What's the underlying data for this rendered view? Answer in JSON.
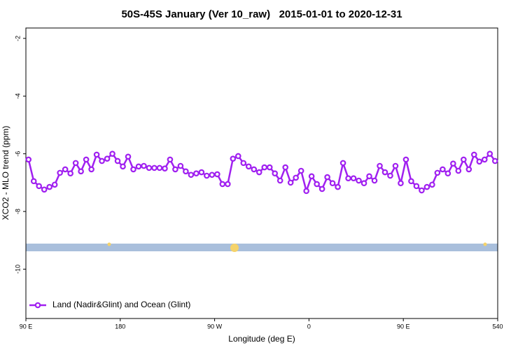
{
  "chart_data": {
    "type": "line",
    "title": "50S-45S January (Ver 10_raw)   2015-01-01 to 2020-12-31",
    "x_label": "Longitude (deg E)",
    "y_label": "XCO2 - MLO trend (ppm)",
    "x": [
      92.5,
      97.5,
      102.5,
      107.5,
      112.5,
      117.5,
      122.5,
      127.5,
      132.5,
      137.5,
      142.5,
      147.5,
      152.5,
      157.5,
      162.5,
      167.5,
      172.5,
      177.5,
      182.5,
      187.5,
      192.5,
      197.5,
      202.5,
      207.5,
      212.5,
      217.5,
      222.5,
      227.5,
      232.5,
      237.5,
      242.5,
      247.5,
      252.5,
      257.5,
      262.5,
      267.5,
      272.5,
      277.5,
      282.5,
      287.5,
      292.5,
      297.5,
      302.5,
      307.5,
      312.5,
      317.5,
      322.5,
      327.5,
      332.5,
      337.5,
      342.5,
      347.5,
      352.5,
      357.5,
      362.5,
      367.5,
      372.5,
      377.5,
      382.5,
      387.5,
      392.5,
      397.5,
      402.5,
      407.5,
      412.5,
      417.5,
      422.5,
      427.5,
      432.5,
      437.5,
      442.5,
      447.5,
      452.5,
      457.5,
      462.5,
      467.5,
      472.5,
      477.5,
      482.5,
      487.5,
      492.5,
      497.5,
      502.5,
      507.5,
      512.5,
      517.5,
      522.5,
      527.5,
      532.5,
      537.5
    ],
    "series": [
      {
        "name": "Land (Nadir&Glint) and Ocean (Glint)",
        "color": "#a020f0",
        "values": [
          -6.2,
          -6.95,
          -7.12,
          -7.24,
          -7.15,
          -7.07,
          -6.66,
          -6.54,
          -6.68,
          -6.32,
          -6.61,
          -6.2,
          -6.54,
          -6.03,
          -6.25,
          -6.17,
          -6.0,
          -6.25,
          -6.44,
          -6.1,
          -6.54,
          -6.44,
          -6.42,
          -6.49,
          -6.49,
          -6.49,
          -6.51,
          -6.2,
          -6.54,
          -6.42,
          -6.61,
          -6.73,
          -6.68,
          -6.64,
          -6.76,
          -6.73,
          -6.71,
          -7.05,
          -7.05,
          -6.17,
          -6.08,
          -6.32,
          -6.44,
          -6.54,
          -6.64,
          -6.47,
          -6.47,
          -6.68,
          -6.93,
          -6.47,
          -7.0,
          -6.83,
          -6.59,
          -7.29,
          -6.78,
          -7.05,
          -7.22,
          -6.81,
          -7.02,
          -7.15,
          -6.32,
          -6.85,
          -6.85,
          -6.93,
          -7.02,
          -6.78,
          -6.93,
          -6.42,
          -6.64,
          -6.76,
          -6.42,
          -7.02,
          -6.2,
          -6.95,
          -7.12,
          -7.27,
          -7.15,
          -7.07,
          -6.66,
          -6.54,
          -6.68,
          -6.34,
          -6.59,
          -6.2,
          -6.54,
          -6.03,
          -6.27,
          -6.2,
          -6.0,
          -6.25
        ]
      }
    ],
    "xlim": [
      90,
      540
    ],
    "xticks": [
      {
        "value": 90,
        "label": "90 E"
      },
      180,
      {
        "value": 270,
        "label": "90 W"
      },
      {
        "value": 360,
        "label": "0"
      },
      {
        "value": 450,
        "label": "90 E"
      },
      540
    ],
    "ylim": [
      -11.71,
      -1.64
    ],
    "yticks": [
      -2,
      -4,
      -6,
      -8,
      -10
    ],
    "legend": "bottom-left"
  }
}
